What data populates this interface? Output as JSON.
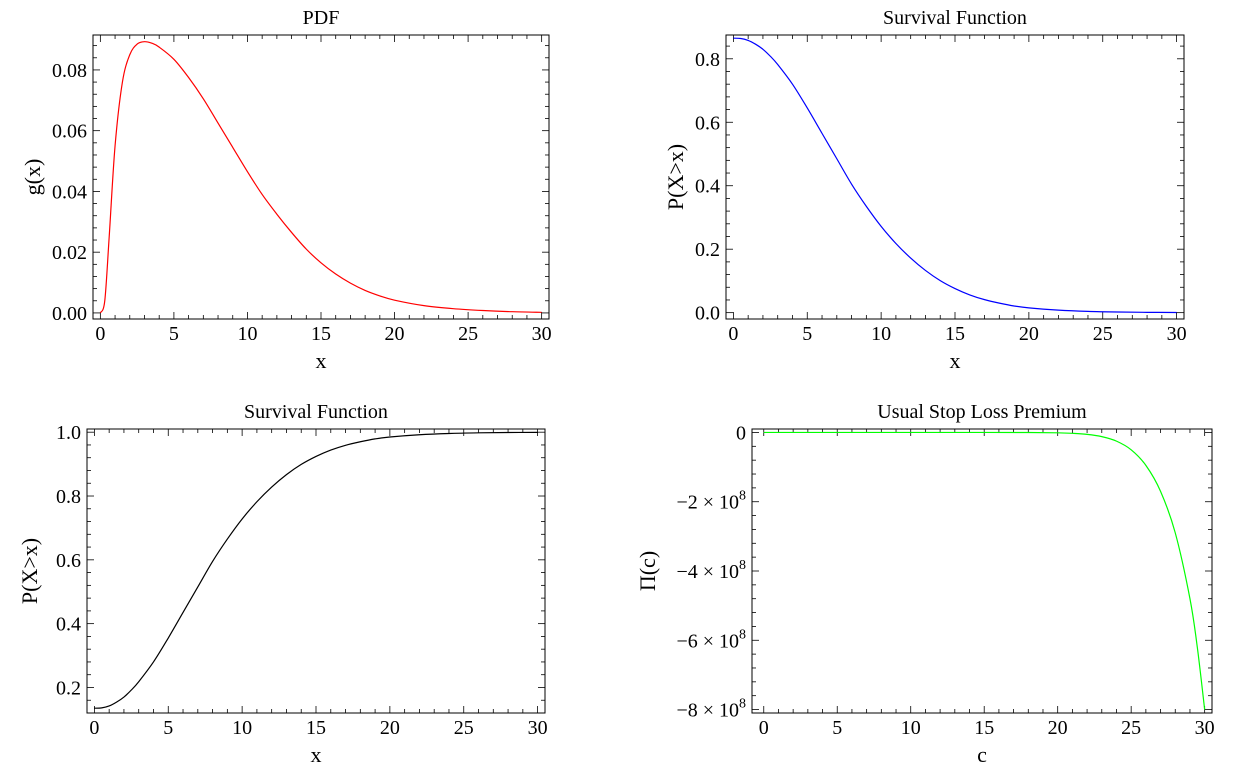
{
  "chart_data": [
    {
      "type": "line",
      "title": "PDF",
      "xlabel": "x",
      "ylabel": "g(x)",
      "xlim": [
        -0.5,
        30.5
      ],
      "ylim": [
        -0.002,
        0.0915
      ],
      "xticks": [
        0,
        5,
        10,
        15,
        20,
        25,
        30
      ],
      "xtick_labels": [
        "0",
        "5",
        "10",
        "15",
        "20",
        "25",
        "30"
      ],
      "yticks": [
        0,
        0.02,
        0.04,
        0.06,
        0.08
      ],
      "ytick_labels": [
        "0.00",
        "0.02",
        "0.04",
        "0.06",
        "0.08"
      ],
      "grid": false,
      "series": [
        {
          "color": "#ff0000",
          "x": [
            0,
            0.3,
            0.6,
            1,
            1.5,
            2,
            2.5,
            3,
            3.5,
            4,
            5,
            6,
            7,
            8,
            9,
            10,
            11,
            12,
            13,
            14,
            15,
            16,
            17,
            18,
            19,
            20,
            22,
            24,
            26,
            28,
            30
          ],
          "y": [
            0,
            0.004,
            0.025,
            0.055,
            0.076,
            0.085,
            0.0885,
            0.0893,
            0.0888,
            0.0875,
            0.0835,
            0.0775,
            0.0705,
            0.0625,
            0.0545,
            0.0465,
            0.039,
            0.0325,
            0.0265,
            0.021,
            0.0165,
            0.0128,
            0.0098,
            0.0074,
            0.0056,
            0.0042,
            0.0024,
            0.0014,
            0.0008,
            0.0004,
            0.0002
          ]
        }
      ]
    },
    {
      "type": "line",
      "title": "Survival Function",
      "xlabel": "x",
      "ylabel": "P(X>x)",
      "xlim": [
        -0.5,
        30.5
      ],
      "ylim": [
        -0.02,
        0.875
      ],
      "xticks": [
        0,
        5,
        10,
        15,
        20,
        25,
        30
      ],
      "xtick_labels": [
        "0",
        "5",
        "10",
        "15",
        "20",
        "25",
        "30"
      ],
      "yticks": [
        0,
        0.2,
        0.4,
        0.6,
        0.8
      ],
      "ytick_labels": [
        "0.0",
        "0.2",
        "0.4",
        "0.6",
        "0.8"
      ],
      "grid": false,
      "series": [
        {
          "color": "#0000ff",
          "x": [
            0,
            0.5,
            1,
            1.5,
            2,
            2.5,
            3,
            4,
            5,
            6,
            7,
            8,
            9,
            10,
            11,
            12,
            13,
            14,
            15,
            16,
            17,
            18,
            19,
            20,
            22,
            24,
            26,
            28,
            30
          ],
          "y": [
            0.865,
            0.864,
            0.858,
            0.846,
            0.83,
            0.808,
            0.782,
            0.72,
            0.645,
            0.565,
            0.485,
            0.405,
            0.335,
            0.272,
            0.218,
            0.172,
            0.133,
            0.101,
            0.076,
            0.056,
            0.041,
            0.03,
            0.021,
            0.015,
            0.008,
            0.004,
            0.002,
            0.001,
            0.0005
          ]
        }
      ]
    },
    {
      "type": "line",
      "title": "Survival Function",
      "xlabel": "x",
      "ylabel": "P(X>x)",
      "xlim": [
        -0.5,
        30.5
      ],
      "ylim": [
        0.12,
        1.01
      ],
      "xticks": [
        0,
        5,
        10,
        15,
        20,
        25,
        30
      ],
      "xtick_labels": [
        "0",
        "5",
        "10",
        "15",
        "20",
        "25",
        "30"
      ],
      "yticks": [
        0.2,
        0.4,
        0.6,
        0.8,
        1.0
      ],
      "ytick_labels": [
        "0.2",
        "0.4",
        "0.6",
        "0.8",
        "1.0"
      ],
      "grid": false,
      "series": [
        {
          "color": "#000000",
          "x": [
            0,
            0.5,
            1,
            1.5,
            2,
            2.5,
            3,
            4,
            5,
            6,
            7,
            8,
            9,
            10,
            11,
            12,
            13,
            14,
            15,
            16,
            17,
            18,
            19,
            20,
            22,
            24,
            26,
            28,
            30
          ],
          "y": [
            0.135,
            0.136,
            0.142,
            0.154,
            0.17,
            0.192,
            0.218,
            0.28,
            0.355,
            0.435,
            0.515,
            0.595,
            0.665,
            0.728,
            0.782,
            0.828,
            0.867,
            0.899,
            0.924,
            0.944,
            0.959,
            0.97,
            0.979,
            0.985,
            0.992,
            0.996,
            0.998,
            0.999,
            0.9995
          ]
        }
      ]
    },
    {
      "type": "line",
      "title": "Usual Stop Loss Premium",
      "xlabel": "c",
      "ylabel": "Π(c)",
      "xlim": [
        -0.8,
        30.5
      ],
      "ylim": [
        -810000000,
        10000000
      ],
      "xticks": [
        0,
        5,
        10,
        15,
        20,
        25,
        30
      ],
      "xtick_labels": [
        "0",
        "5",
        "10",
        "15",
        "20",
        "25",
        "30"
      ],
      "yticks": [
        0,
        -200000000,
        -400000000,
        -600000000,
        -800000000
      ],
      "ytick_labels": [
        {
          "base": "0",
          "exp": ""
        },
        {
          "base": "−2 × 10",
          "exp": "8"
        },
        {
          "base": "−4 × 10",
          "exp": "8"
        },
        {
          "base": "−6 × 10",
          "exp": "8"
        },
        {
          "base": "−8 × 10",
          "exp": "8"
        }
      ],
      "grid": false,
      "series": [
        {
          "color": "#00ff00",
          "x": [
            0,
            5,
            10,
            15,
            18,
            20,
            21,
            22,
            23,
            24,
            25,
            26,
            27,
            28,
            29,
            29.5,
            30
          ],
          "y": [
            0,
            0,
            0,
            0,
            -200000,
            -1000000,
            -2500000,
            -5500000,
            -12000000,
            -25000000,
            -50000000,
            -95000000,
            -170000000,
            -290000000,
            -480000000,
            -620000000,
            -800000000
          ]
        }
      ]
    }
  ]
}
